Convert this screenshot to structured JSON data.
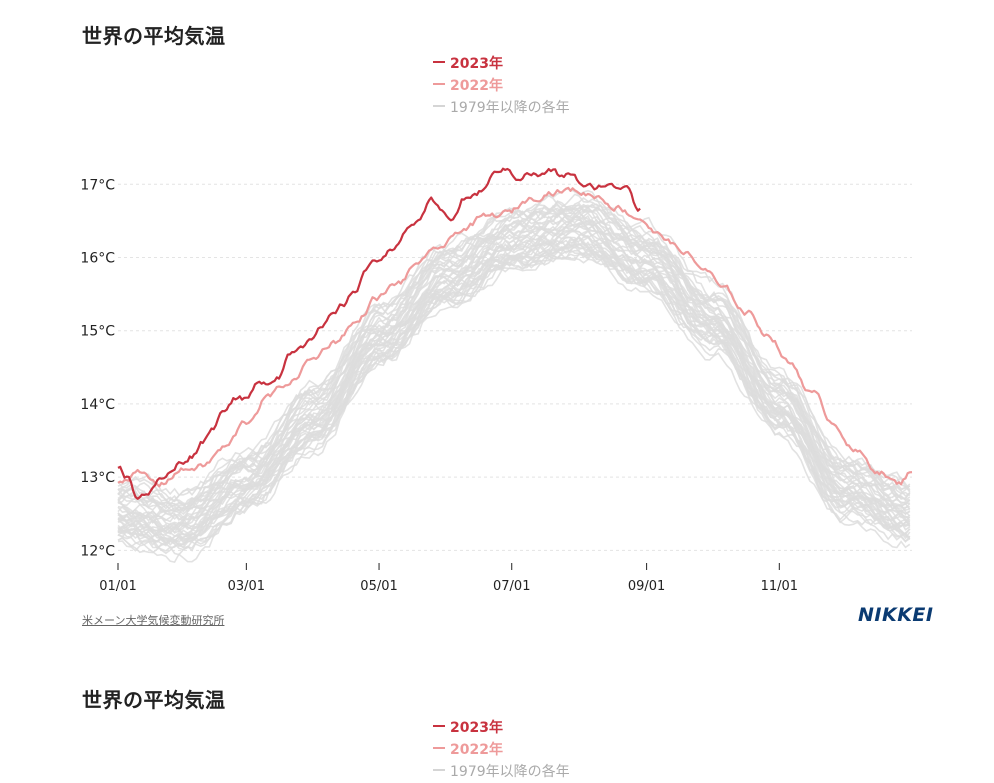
{
  "charts": [
    {
      "title": "世界の平均気温",
      "legend": [
        {
          "label": "2023年",
          "color": "#c8323f"
        },
        {
          "label": "2022年",
          "color": "#ee9a9a"
        },
        {
          "label": "1979年以降の各年",
          "color": "#d9d9d9"
        }
      ],
      "source": "米メーン大学気候変動研究所",
      "logo": "NIKKEI"
    },
    {
      "title": "世界の平均気温",
      "legend": [
        {
          "label": "2023年",
          "color": "#c8323f"
        },
        {
          "label": "2022年",
          "color": "#ee9a9a"
        },
        {
          "label": "1979年以降の各年",
          "color": "#d9d9d9"
        }
      ]
    }
  ],
  "chart_data": {
    "type": "line",
    "title": "世界の平均気温",
    "xlabel": "",
    "ylabel": "",
    "x_unit": "day of year",
    "xlim": [
      1,
      366
    ],
    "ylim": [
      11.8,
      17.4
    ],
    "x_ticks": [
      {
        "day": 1,
        "label": "01/01"
      },
      {
        "day": 60,
        "label": "03/01"
      },
      {
        "day": 121,
        "label": "05/01"
      },
      {
        "day": 182,
        "label": "07/01"
      },
      {
        "day": 244,
        "label": "09/01"
      },
      {
        "day": 305,
        "label": "11/01"
      }
    ],
    "y_ticks": [
      {
        "value": 12,
        "label": "12°C"
      },
      {
        "value": 13,
        "label": "13°C"
      },
      {
        "value": 14,
        "label": "14°C"
      },
      {
        "value": 15,
        "label": "15°C"
      },
      {
        "value": 16,
        "label": "16°C"
      },
      {
        "value": 17,
        "label": "17°C"
      }
    ],
    "grid": true,
    "series": [
      {
        "name": "2023年",
        "color": "#c8323f",
        "x": [
          1,
          5,
          10,
          15,
          20,
          25,
          30,
          35,
          40,
          45,
          50,
          55,
          60,
          65,
          70,
          75,
          80,
          85,
          90,
          95,
          100,
          105,
          110,
          115,
          120,
          125,
          130,
          135,
          140,
          145,
          150,
          155,
          160,
          165,
          170,
          175,
          180,
          185,
          190,
          195,
          200,
          205,
          210,
          215,
          220,
          225,
          230,
          235,
          240,
          241
        ],
        "y": [
          13.15,
          13.0,
          12.75,
          12.8,
          12.95,
          13.05,
          13.2,
          13.3,
          13.5,
          13.7,
          13.95,
          14.1,
          14.05,
          14.25,
          14.3,
          14.4,
          14.7,
          14.8,
          14.95,
          15.05,
          15.2,
          15.35,
          15.55,
          15.85,
          15.95,
          16.1,
          16.2,
          16.4,
          16.55,
          16.75,
          16.6,
          16.55,
          16.8,
          16.85,
          16.95,
          17.2,
          17.2,
          17.1,
          17.15,
          17.12,
          17.18,
          17.1,
          17.15,
          16.95,
          16.95,
          17.0,
          16.95,
          17.0,
          16.7,
          16.7
        ]
      },
      {
        "name": "2022年",
        "color": "#ee9a9a",
        "x": [
          1,
          10,
          20,
          30,
          40,
          50,
          60,
          70,
          80,
          90,
          100,
          110,
          120,
          130,
          140,
          150,
          160,
          170,
          180,
          190,
          200,
          210,
          220,
          230,
          240,
          250,
          260,
          270,
          280,
          290,
          300,
          310,
          320,
          330,
          340,
          350,
          360,
          366
        ],
        "y": [
          12.95,
          13.05,
          12.9,
          13.1,
          13.15,
          13.4,
          13.75,
          14.1,
          14.3,
          14.6,
          14.85,
          15.1,
          15.45,
          15.65,
          15.95,
          16.15,
          16.4,
          16.55,
          16.6,
          16.8,
          16.9,
          16.92,
          16.85,
          16.7,
          16.55,
          16.3,
          16.1,
          15.85,
          15.55,
          15.25,
          14.95,
          14.55,
          14.15,
          13.75,
          13.35,
          13.1,
          12.9,
          13.1
        ]
      },
      {
        "name": "1979年以降の各年",
        "color": "#dddddd",
        "x": [
          1,
          31,
          61,
          91,
          121,
          152,
          182,
          213,
          244,
          274,
          305,
          335,
          366
        ],
        "y_mean": [
          12.55,
          12.4,
          13.0,
          13.85,
          14.95,
          15.75,
          16.25,
          16.45,
          16.0,
          15.2,
          14.05,
          12.9,
          12.55
        ],
        "y_spread": 0.4,
        "count": 44
      }
    ]
  }
}
